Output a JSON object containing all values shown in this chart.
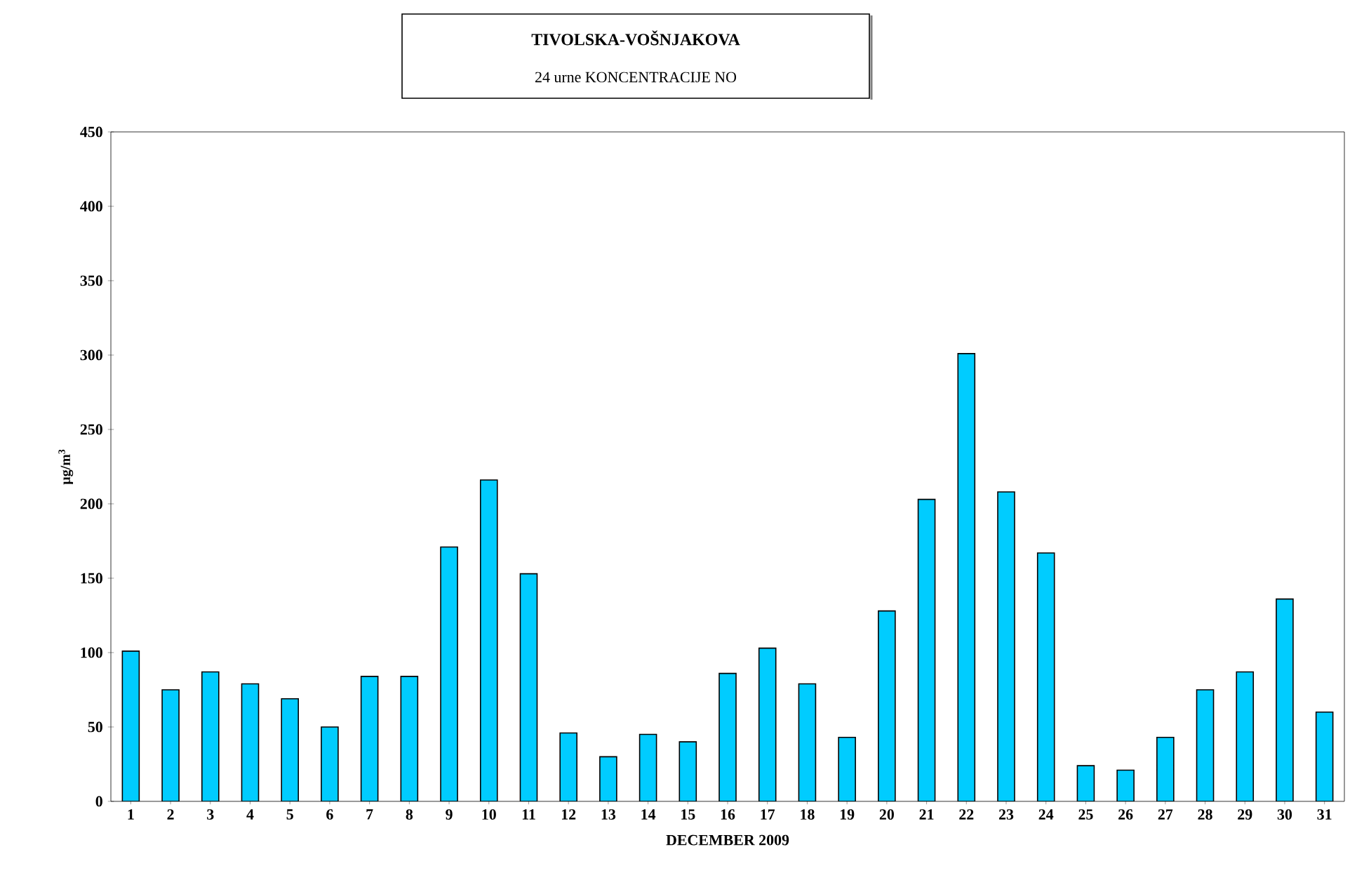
{
  "chart_data": {
    "type": "bar",
    "title": "TIVOLSKA-VOŠNJAKOVA",
    "subtitle": "24 urne KONCENTRACIJE NO",
    "xlabel": "DECEMBER 2009",
    "ylabel": "µg/m$^{3}$",
    "categories": [
      "1",
      "2",
      "3",
      "4",
      "5",
      "6",
      "7",
      "8",
      "9",
      "10",
      "11",
      "12",
      "13",
      "14",
      "15",
      "16",
      "17",
      "18",
      "19",
      "20",
      "21",
      "22",
      "23",
      "24",
      "25",
      "26",
      "27",
      "28",
      "29",
      "30",
      "31"
    ],
    "values": [
      101,
      75,
      87,
      79,
      69,
      50,
      84,
      84,
      171,
      216,
      153,
      46,
      30,
      45,
      40,
      86,
      103,
      79,
      43,
      128,
      203,
      301,
      208,
      167,
      24,
      21,
      43,
      75,
      87,
      136,
      60
    ],
    "color": "#00ccff",
    "ylim": [
      0,
      450
    ],
    "yticks": [
      0,
      50,
      100,
      150,
      200,
      250,
      300,
      350,
      400,
      450
    ]
  }
}
